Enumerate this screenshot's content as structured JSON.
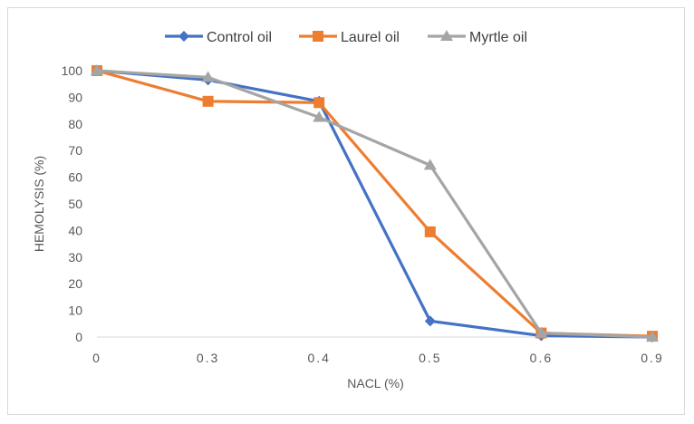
{
  "chart_data": {
    "type": "line",
    "title": "",
    "xlabel": "NACL (%)",
    "ylabel": "HEMOLYSIS (%)",
    "categories": [
      "0",
      "0.3",
      "0.4",
      "0.5",
      "0.6",
      "0.9"
    ],
    "ylim": [
      0,
      100
    ],
    "yticks": [
      0,
      10,
      20,
      30,
      40,
      50,
      60,
      70,
      80,
      90,
      100
    ],
    "grid": false,
    "legend_position": "top",
    "series": [
      {
        "name": "Control oil",
        "values": [
          100,
          96.5,
          88.5,
          6,
          0.5,
          0
        ],
        "color": "#4472c4",
        "marker": "diamond"
      },
      {
        "name": "Laurel oil",
        "values": [
          100,
          88.5,
          88,
          39.5,
          1.5,
          0.3
        ],
        "color": "#ed7d31",
        "marker": "square"
      },
      {
        "name": "Myrtle oil",
        "values": [
          100,
          97.5,
          82.5,
          64.5,
          1.5,
          0
        ],
        "color": "#a5a5a5",
        "marker": "triangle"
      }
    ]
  }
}
